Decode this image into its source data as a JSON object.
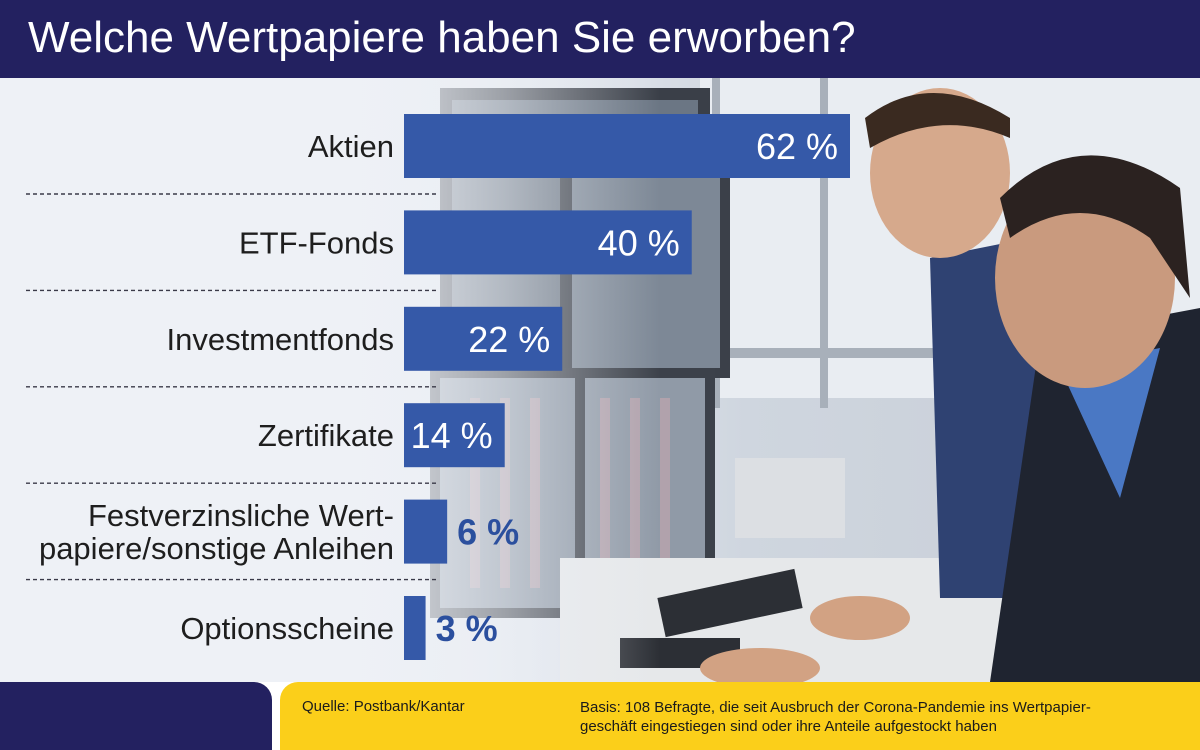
{
  "header": {
    "title": "Welche Wertpapiere haben Sie erworben?"
  },
  "colors": {
    "header_bg": "#232160",
    "bar": "#3559a8",
    "bar_value_bold": "#2b4f9e",
    "footer_left": "#232160",
    "footer_right": "#fbcf1a"
  },
  "chart_data": {
    "type": "bar",
    "orientation": "horizontal",
    "title": "",
    "categories": [
      "Aktien",
      "ETF-Fonds",
      "Investmentfonds",
      "Zertifikate",
      "Festverzinsliche Wert-\npapiere/sonstige Anleihen",
      "Optionsscheine"
    ],
    "values": [
      62,
      40,
      22,
      14,
      6,
      3
    ],
    "value_labels": [
      "62 %",
      "40 %",
      "22 %",
      "14 %",
      "6 %",
      "3 %"
    ],
    "unit": "%",
    "xlim": [
      0,
      62
    ],
    "grid": false,
    "legend": "none"
  },
  "footer": {
    "source": "Quelle: Postbank/Kantar",
    "basis_line1": "Basis: 108 Befragte, die seit Ausbruch der Corona-Pandemie ins Wertpapier-",
    "basis_line2": "geschäft eingestiegen sind oder ihre Anteile aufgestockt haben"
  }
}
